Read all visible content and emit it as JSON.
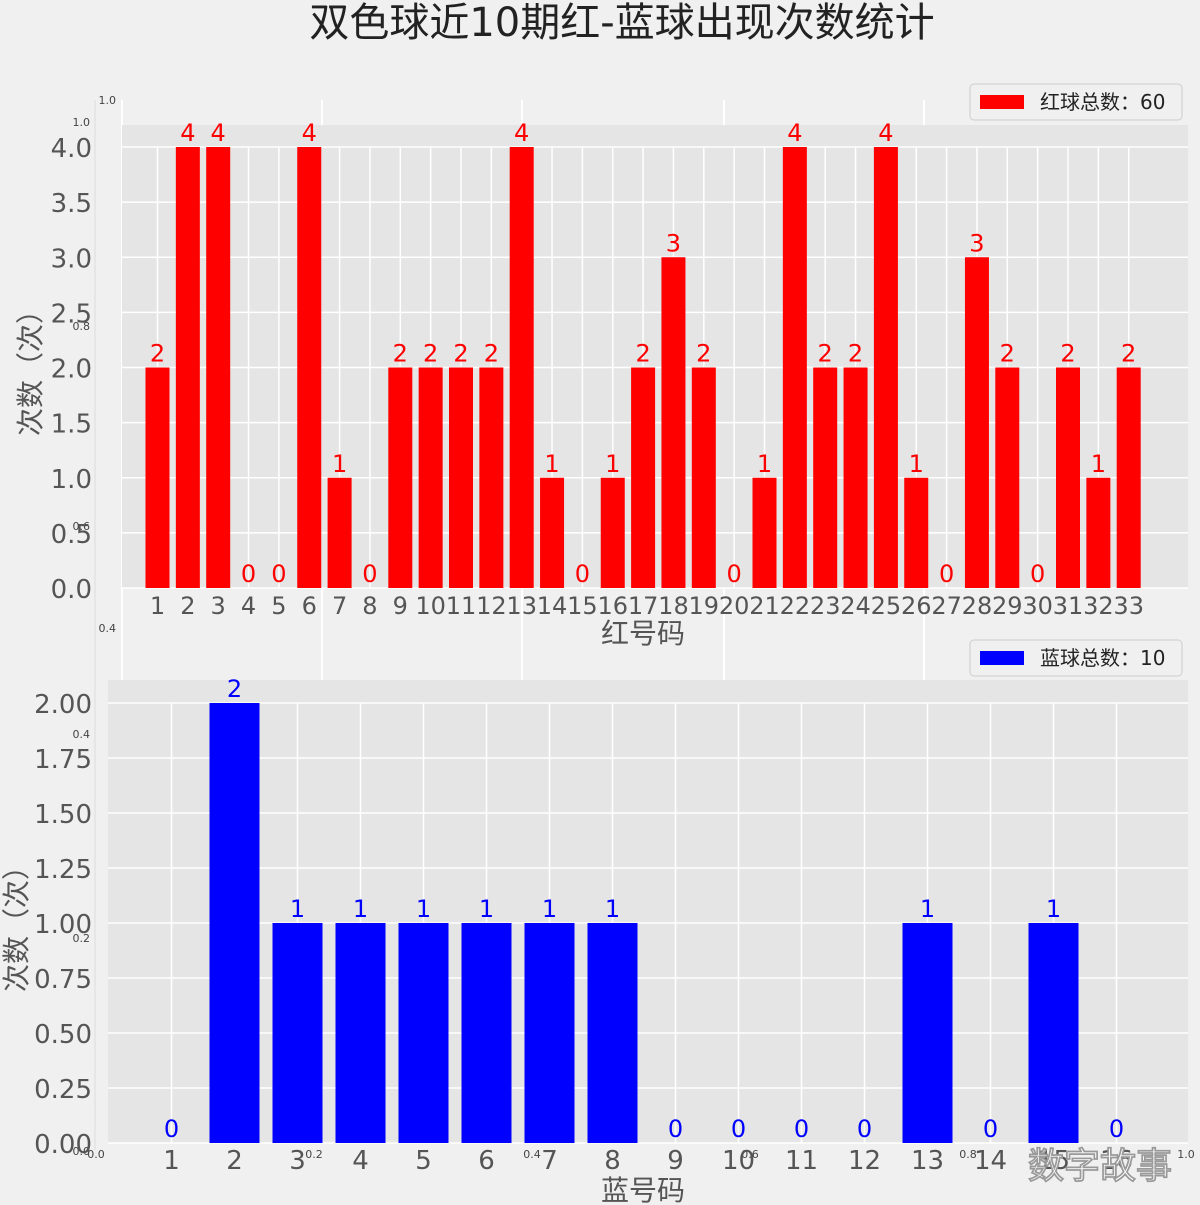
{
  "title": "双色球近10期红-蓝球出现次数统计",
  "watermark": "数字故事",
  "chart_data": [
    {
      "type": "bar",
      "xlabel": "红号码",
      "ylabel": "次数（次）",
      "categories": [
        "1",
        "2",
        "3",
        "4",
        "5",
        "6",
        "7",
        "8",
        "9",
        "10",
        "11",
        "12",
        "13",
        "14",
        "15",
        "16",
        "17",
        "18",
        "19",
        "20",
        "21",
        "22",
        "23",
        "24",
        "25",
        "26",
        "27",
        "28",
        "29",
        "30",
        "31",
        "32",
        "33"
      ],
      "series": [
        {
          "name": "红球总数：60",
          "values": [
            2,
            4,
            4,
            0,
            0,
            4,
            1,
            0,
            2,
            2,
            2,
            2,
            4,
            1,
            0,
            1,
            2,
            3,
            2,
            0,
            1,
            4,
            2,
            2,
            4,
            1,
            0,
            3,
            2,
            0,
            2,
            1,
            2
          ]
        }
      ],
      "color": "#ff0000",
      "ylim": [
        0,
        4.0
      ],
      "yticks": [
        "0.0",
        "0.5",
        "1.0",
        "1.5",
        "2.0",
        "2.5",
        "3.0",
        "3.5",
        "4.0"
      ],
      "legend_position": "top-right",
      "grid": true
    },
    {
      "type": "bar",
      "xlabel": "蓝号码",
      "ylabel": "次数（次）",
      "categories": [
        "1",
        "2",
        "3",
        "4",
        "5",
        "6",
        "7",
        "8",
        "9",
        "10",
        "11",
        "12",
        "13",
        "14",
        "15",
        "16"
      ],
      "series": [
        {
          "name": "蓝球总数：10",
          "values": [
            0,
            2,
            1,
            1,
            1,
            1,
            1,
            1,
            0,
            0,
            0,
            0,
            1,
            0,
            1,
            0
          ]
        }
      ],
      "color": "#0000ff",
      "ylim": [
        0,
        2.0
      ],
      "yticks": [
        "0.00",
        "0.25",
        "0.50",
        "0.75",
        "1.00",
        "1.25",
        "1.50",
        "1.75",
        "2.00"
      ],
      "legend_position": "top-right",
      "grid": true
    }
  ],
  "ghost_axes": {
    "x_ticks": [
      "0.0",
      "0.2",
      "0.4",
      "0.6",
      "0.8",
      "1.0"
    ],
    "y_ticks": [
      "0.0",
      "0.2",
      "0.4",
      "0.6",
      "0.8",
      "1.0"
    ]
  }
}
